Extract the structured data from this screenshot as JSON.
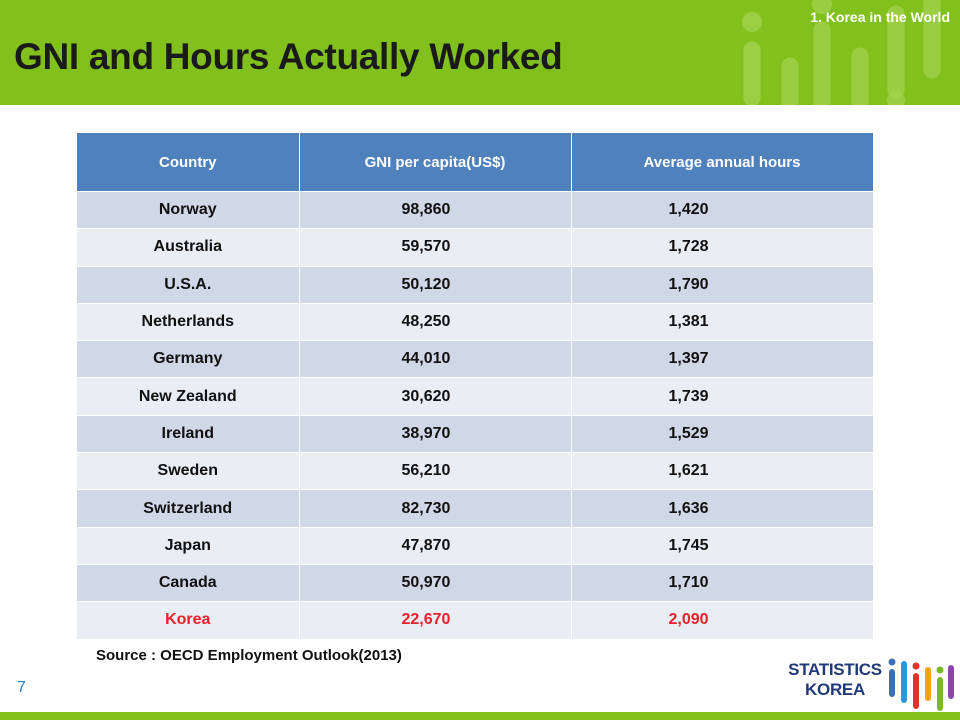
{
  "header": {
    "section_label": "1.   Korea in the World",
    "title": "GNI and Hours Actually Worked"
  },
  "table": {
    "columns": [
      "Country",
      "GNI per capita(US$)",
      "Average annual hours"
    ],
    "rows": [
      {
        "country": "Norway",
        "gni": "98,860",
        "hours": "1,420"
      },
      {
        "country": "Australia",
        "gni": "59,570",
        "hours": "1,728"
      },
      {
        "country": "U.S.A.",
        "gni": "50,120",
        "hours": "1,790"
      },
      {
        "country": "Netherlands",
        "gni": "48,250",
        "hours": "1,381"
      },
      {
        "country": "Germany",
        "gni": "44,010",
        "hours": "1,397"
      },
      {
        "country": "New Zealand",
        "gni": "30,620",
        "hours": "1,739"
      },
      {
        "country": "Ireland",
        "gni": "38,970",
        "hours": "1,529"
      },
      {
        "country": "Sweden",
        "gni": "56,210",
        "hours": "1,621"
      },
      {
        "country": "Switzerland",
        "gni": "82,730",
        "hours": "1,636"
      },
      {
        "country": "Japan",
        "gni": "47,870",
        "hours": "1,745"
      },
      {
        "country": "Canada",
        "gni": "50,970",
        "hours": "1,710"
      },
      {
        "country": "Korea",
        "gni": "22,670",
        "hours": "2,090"
      }
    ],
    "highlight_color": "#e8212b",
    "header_color": "#4f81bd"
  },
  "source_note": "Source :  OECD Employment Outlook(2013)",
  "page_number": "7",
  "logo": {
    "line1": "STATISTICS",
    "line2": "KOREA",
    "icon": "statistics-korea-bars-logo"
  },
  "colors": {
    "accent_green": "#82c01e",
    "logo_blue": "#203a78"
  }
}
